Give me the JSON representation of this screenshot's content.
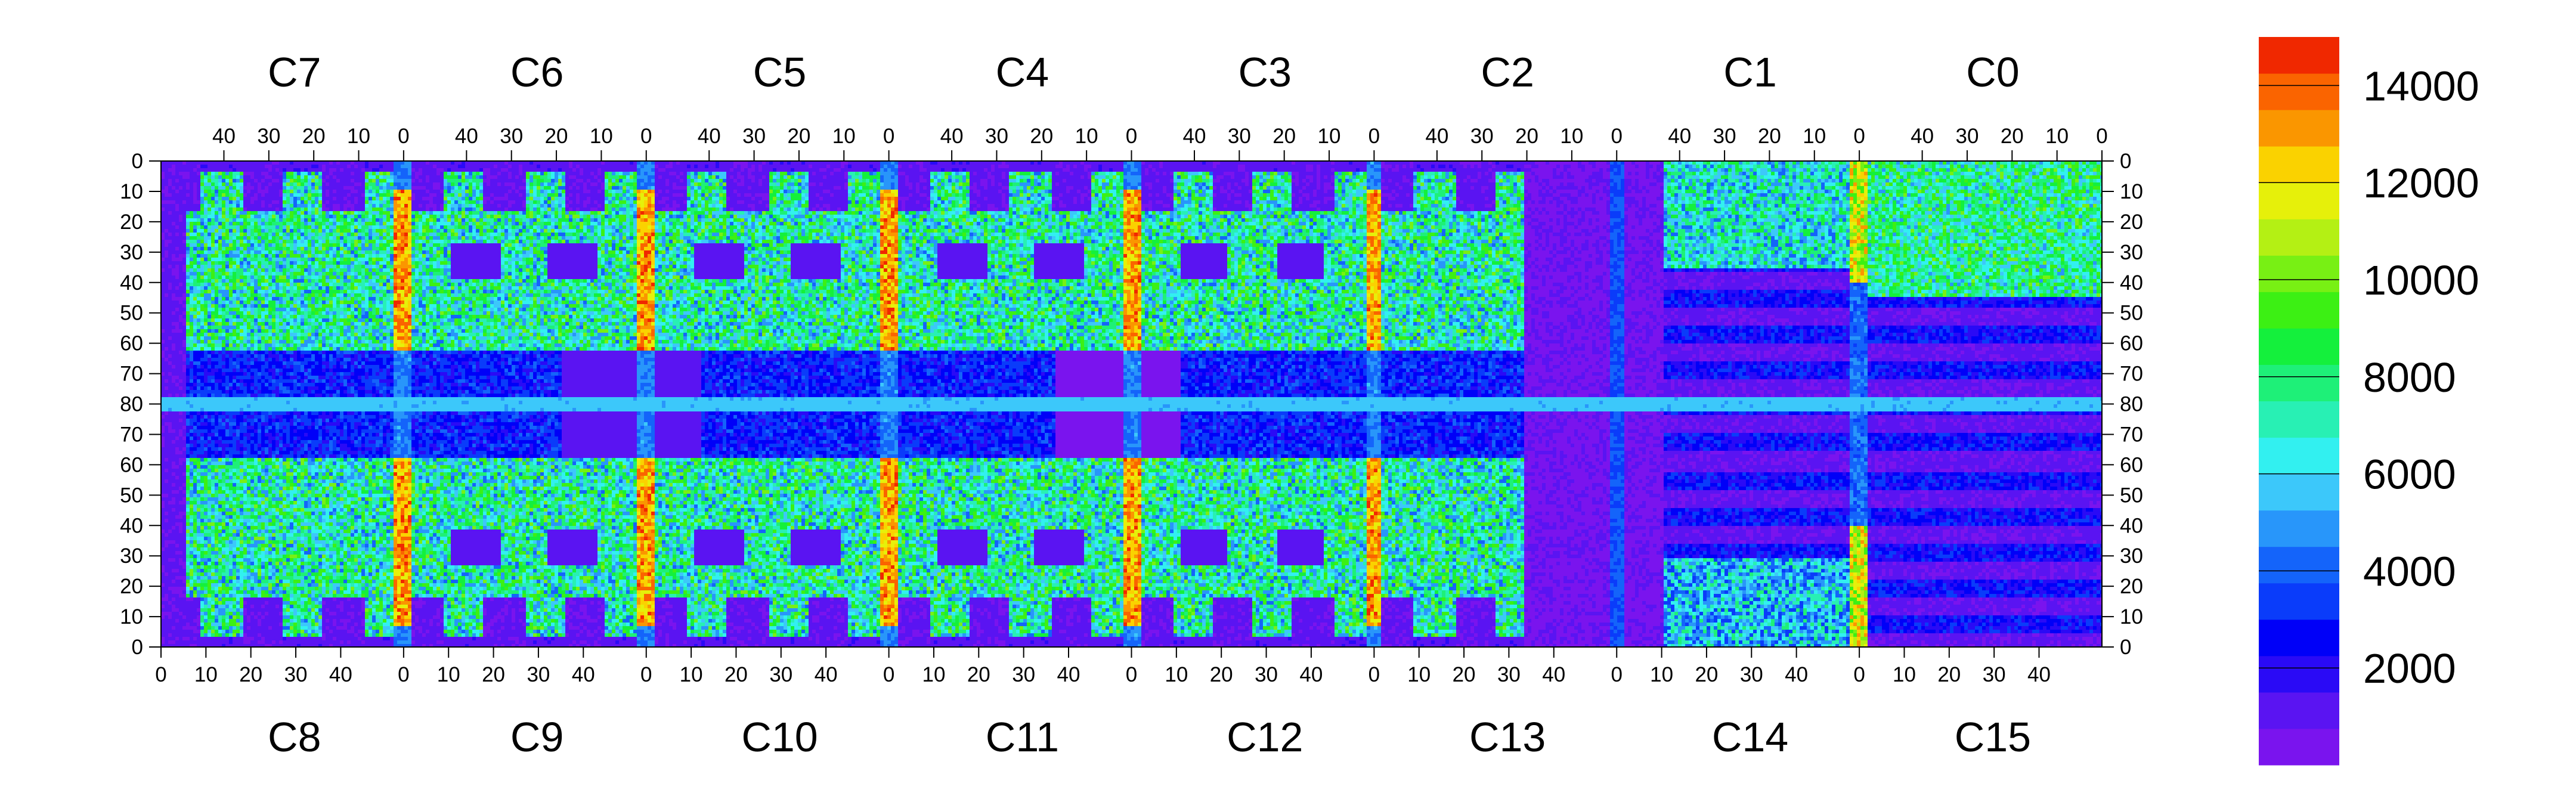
{
  "chart_data": {
    "type": "heatmap",
    "top_chips": [
      "C7",
      "C6",
      "C5",
      "C4",
      "C3",
      "C2",
      "C1",
      "C0"
    ],
    "bottom_chips": [
      "C8",
      "C9",
      "C10",
      "C11",
      "C12",
      "C13",
      "C14",
      "C15"
    ],
    "top_axis_ticks": [
      "40",
      "30",
      "20",
      "10",
      "0"
    ],
    "bottom_axis_ticks": [
      "0",
      "10",
      "20",
      "30",
      "40"
    ],
    "left_axis_ticks": [
      "0",
      "10",
      "20",
      "30",
      "40",
      "50",
      "60",
      "70",
      "80",
      "70",
      "60",
      "50",
      "40",
      "30",
      "20",
      "10",
      "0"
    ],
    "right_axis_ticks": [
      "0",
      "10",
      "20",
      "30",
      "40",
      "50",
      "60",
      "70",
      "80",
      "70",
      "60",
      "50",
      "40",
      "30",
      "20",
      "10",
      "0"
    ],
    "colorbar": {
      "min": 0,
      "max": 15000,
      "tick_values": [
        2000,
        4000,
        6000,
        8000,
        10000,
        12000,
        14000
      ],
      "tick_labels": [
        "2000",
        "4000",
        "6000",
        "8000",
        "10000",
        "12000",
        "14000"
      ],
      "colors": [
        "#7a14ee",
        "#5a14f2",
        "#2a0af6",
        "#0000f8",
        "#0a3cfa",
        "#1464fa",
        "#2896fa",
        "#3cc8fa",
        "#32f0f0",
        "#28f0b4",
        "#1ef078",
        "#14f03c",
        "#3cf014",
        "#78f014",
        "#b4f014",
        "#e6f00a",
        "#fad200",
        "#fa9600",
        "#fa6400",
        "#f02800"
      ]
    },
    "features": {
      "high_columns": [
        "C6/C9 col 0",
        "C5/C10 col 0",
        "C4/C11 col 0",
        "C3/C12 col 0",
        "C2/C13 col 0",
        "C1/C14 col 0"
      ],
      "low_region": "C13-C14 and right half of C2-C1 mostly near 0-2000",
      "center_band_row": "80"
    }
  }
}
